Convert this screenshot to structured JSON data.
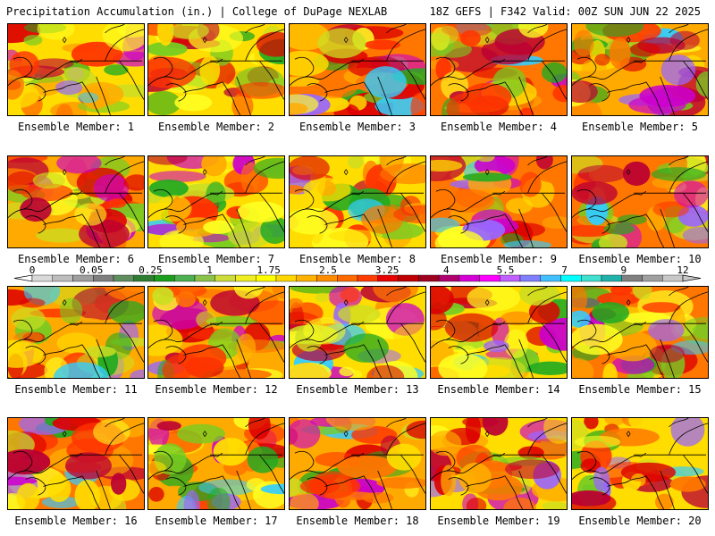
{
  "header": {
    "left": "Precipitation Accumulation (in.) | College of DuPage NEXLAB",
    "right": "18Z GEFS | F342 Valid: 00Z SUN JUN 22 2025"
  },
  "members": [
    {
      "label": "Ensemble Member: 1"
    },
    {
      "label": "Ensemble Member: 2"
    },
    {
      "label": "Ensemble Member: 3"
    },
    {
      "label": "Ensemble Member: 4"
    },
    {
      "label": "Ensemble Member: 5"
    },
    {
      "label": "Ensemble Member: 6"
    },
    {
      "label": "Ensemble Member: 7"
    },
    {
      "label": "Ensemble Member: 8"
    },
    {
      "label": "Ensemble Member: 9"
    },
    {
      "label": "Ensemble Member: 10"
    },
    {
      "label": "Ensemble Member: 11"
    },
    {
      "label": "Ensemble Member: 12"
    },
    {
      "label": "Ensemble Member: 13"
    },
    {
      "label": "Ensemble Member: 14"
    },
    {
      "label": "Ensemble Member: 15"
    },
    {
      "label": "Ensemble Member: 16"
    },
    {
      "label": "Ensemble Member: 17"
    },
    {
      "label": "Ensemble Member: 18"
    },
    {
      "label": "Ensemble Member: 19"
    },
    {
      "label": "Ensemble Member: 20"
    }
  ],
  "colorbar": {
    "tick_labels": [
      "0",
      "0.05",
      "0.25",
      "1",
      "1.75",
      "2.5",
      "3.25",
      "4",
      "5.5",
      "7",
      "9",
      "12"
    ],
    "colors": [
      "#d9d9d9",
      "#bdbdbd",
      "#9e9e9e",
      "#7f7f7f",
      "#5f8f5f",
      "#2e7d32",
      "#1b9e1b",
      "#4caf50",
      "#8bc34a",
      "#cddc39",
      "#eeee22",
      "#ffff00",
      "#ffd700",
      "#ffb300",
      "#ff8c00",
      "#ff6a00",
      "#ff3d00",
      "#e60000",
      "#c00000",
      "#a00020",
      "#b0006e",
      "#d400d4",
      "#ff00ff",
      "#c060ff",
      "#8080ff",
      "#40c0ff",
      "#00ffff",
      "#40e0d0",
      "#20b2aa",
      "#808080",
      "#a0a0a0",
      "#c8c8c8"
    ]
  }
}
